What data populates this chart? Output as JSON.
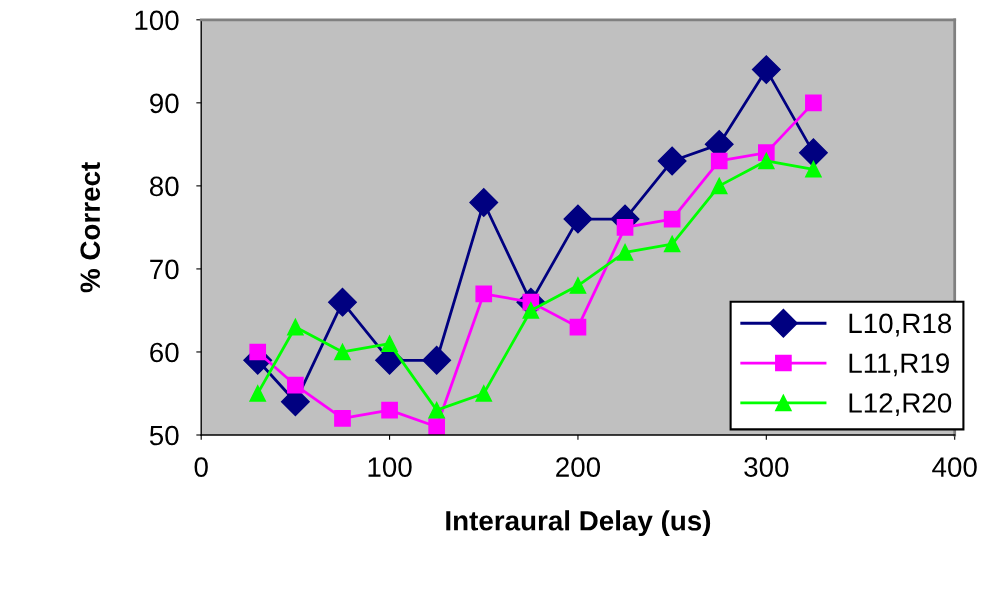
{
  "chart_data": {
    "type": "line",
    "xlabel": "Interaural Delay (us)",
    "ylabel": "% Correct",
    "x": [
      30,
      50,
      75,
      100,
      125,
      150,
      175,
      200,
      225,
      250,
      275,
      300,
      325
    ],
    "series": [
      {
        "name": "L10,R18",
        "color": "#000080",
        "marker": "diamond",
        "values": [
          59,
          54,
          66,
          59,
          59,
          78,
          66,
          76,
          76,
          83,
          85,
          94,
          84
        ]
      },
      {
        "name": "L11,R19",
        "color": "#ff00ff",
        "marker": "square",
        "values": [
          60,
          56,
          52,
          53,
          51,
          67,
          66,
          63,
          75,
          76,
          83,
          84,
          90
        ]
      },
      {
        "name": "L12,R20",
        "color": "#00ff00",
        "marker": "triangle",
        "values": [
          55,
          63,
          60,
          61,
          53,
          55,
          65,
          68,
          72,
          73,
          80,
          83,
          82
        ]
      }
    ],
    "xlim": [
      0,
      400
    ],
    "xticks": [
      0,
      100,
      200,
      300,
      400
    ],
    "ylim": [
      50,
      100
    ],
    "yticks": [
      50,
      60,
      70,
      80,
      90,
      100
    ],
    "grid": false,
    "legend": "bottom right",
    "line_style": "solid"
  }
}
